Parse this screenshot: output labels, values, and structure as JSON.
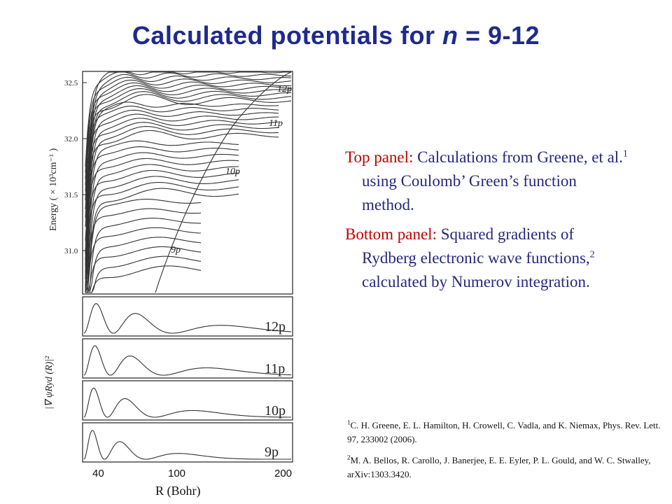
{
  "slide": {
    "title_main": "Calculated potentials for ",
    "title_n": "n",
    "title_rest": " = 9-12"
  },
  "top_panel": {
    "ylabel": "Energy ( × 10³cm⁻¹ )",
    "y_ticks": [
      "32.5",
      "32.0",
      "31.5",
      "31.0"
    ],
    "curve_labels": [
      "12p",
      "11p",
      "10p",
      "9p"
    ]
  },
  "bottom_panel": {
    "ylabel": "|∇ ψRyd (R)|²",
    "panel_labels": [
      "12p",
      "11p",
      "10p",
      "9p"
    ]
  },
  "x_axis": {
    "ticks": [
      "40",
      "100",
      "200"
    ],
    "label": "R (Bohr)"
  },
  "description": {
    "top_heading": "Top panel:",
    "top_text": " Calculations from Greene, et al.",
    "top_sup": "1",
    "top_text2": " using Coulomb’ Green’s function method.",
    "bottom_heading": "Bottom panel:",
    "bottom_text": " Squared gradients of Rydberg electronic wave functions,",
    "bottom_sup": "2",
    "bottom_text2": " calculated by Numerov integration."
  },
  "references": [
    {
      "num": "1",
      "text": "C. H. Greene, E. L. Hamilton, H. Crowell, C. Vadla, and K. Niemax, Phys. Rev. Lett. 97, 233002  (2006)."
    },
    {
      "num": "2",
      "text": "M. A. Bellos, R. Carollo, J. Banerjee, E. E. Eyler, P. L. Gould, and W. C. Stwalley, arXiv:1303.3420."
    }
  ],
  "colors": {
    "title": "#1f2a8c",
    "body_text": "#27277e",
    "highlight": "#c00000"
  }
}
